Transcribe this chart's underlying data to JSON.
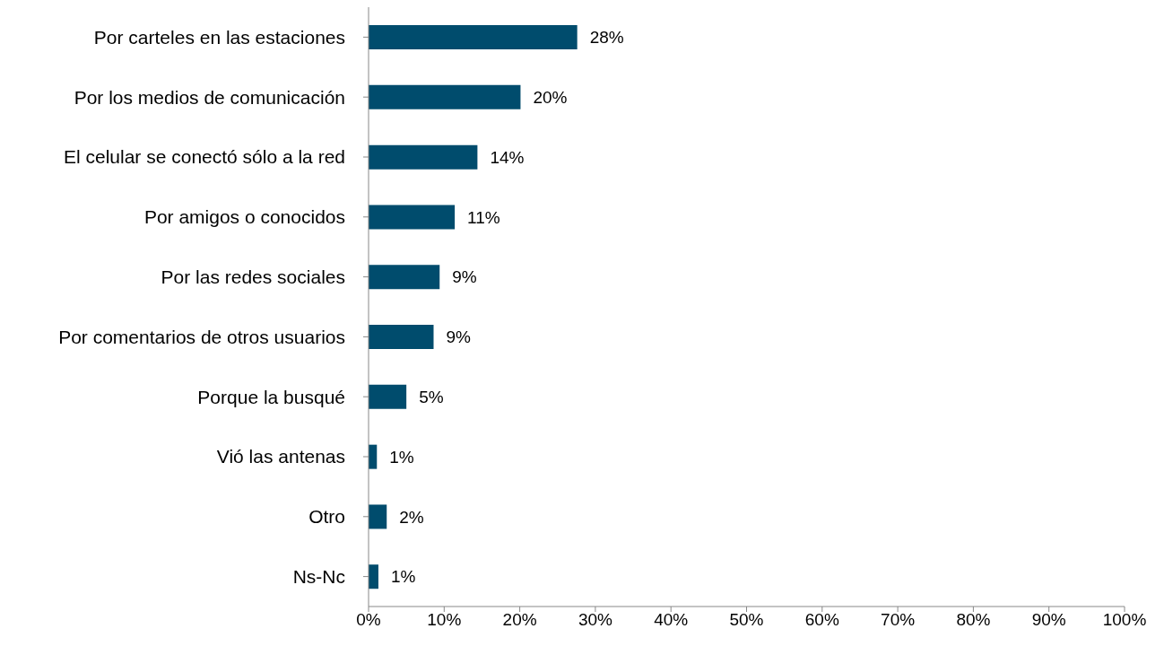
{
  "chart_data": {
    "type": "bar",
    "orientation": "horizontal",
    "categories": [
      "Por carteles en las estaciones",
      "Por los medios de comunicación",
      "El celular se conectó sólo a la red",
      "Por amigos o conocidos",
      "Por las redes sociales",
      "Por comentarios de otros usuarios",
      "Porque la busqué",
      "Vió las antenas",
      "Otro",
      "Ns-Nc"
    ],
    "values": [
      27.6,
      20.1,
      14.4,
      11.4,
      9.4,
      8.6,
      5.0,
      1.1,
      2.4,
      1.3
    ],
    "value_labels": [
      "28%",
      "20%",
      "14%",
      "11%",
      "9%",
      "9%",
      "5%",
      "1%",
      "2%",
      "1%"
    ],
    "color": "#004c6d",
    "xlim": [
      0,
      100
    ],
    "xticks": [
      {
        "value": 0,
        "label": "0%"
      },
      {
        "value": 10,
        "label": "10%"
      },
      {
        "value": 20,
        "label": "20%"
      },
      {
        "value": 30,
        "label": "30%"
      },
      {
        "value": 40,
        "label": "40%"
      },
      {
        "value": 50,
        "label": "50%"
      },
      {
        "value": 60,
        "label": "60%"
      },
      {
        "value": 70,
        "label": "70%"
      },
      {
        "value": 80,
        "label": "80%"
      },
      {
        "value": 90,
        "label": "90%"
      },
      {
        "value": 100,
        "label": "100%"
      }
    ],
    "grid": false,
    "legend": false
  }
}
